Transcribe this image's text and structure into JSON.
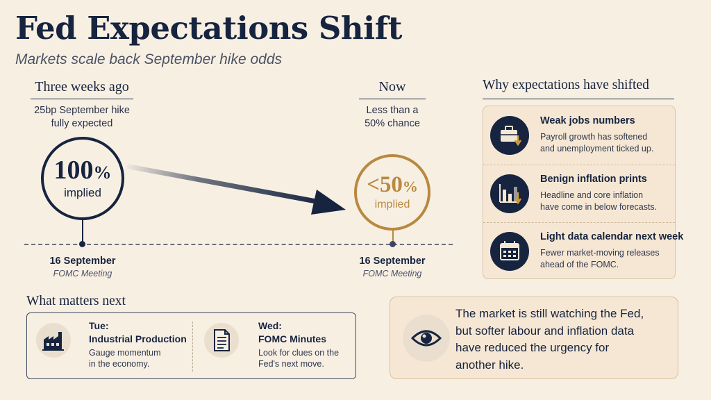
{
  "header": {
    "title": "Fed Expectations Shift",
    "subtitle": "Markets scale back September hike odds"
  },
  "colors": {
    "navy": "#16243f",
    "gold": "#b8893f",
    "background": "#f8efe3",
    "panel": "#f6e7d4"
  },
  "timeline": {
    "then": {
      "heading": "Three weeks ago",
      "desc_line1": "25bp September hike",
      "desc_line2": "fully expected",
      "value": "100",
      "unit": "%",
      "label": "implied",
      "probability_pct": 100
    },
    "now": {
      "heading": "Now",
      "desc_line1": "Less than a",
      "desc_line2": "50% chance",
      "value": "<50",
      "unit": "%",
      "label": "implied",
      "probability_pct": 50
    },
    "meeting_then": {
      "date": "16 September",
      "name": "FOMC Meeting"
    },
    "meeting_now": {
      "date": "16 September",
      "name": "FOMC Meeting"
    }
  },
  "why": {
    "heading": "Why expectations have shifted",
    "items": [
      {
        "icon": "briefcase-down-icon",
        "title": "Weak jobs numbers",
        "line1": "Payroll growth has softened",
        "line2": "and unemployment ticked up."
      },
      {
        "icon": "chart-down-icon",
        "title": "Benign inflation prints",
        "line1": "Headline and core inflation",
        "line2": "have come in below forecasts."
      },
      {
        "icon": "calendar-icon",
        "title": "Light data calendar next week",
        "line1": "Fewer market-moving releases",
        "line2": "ahead of the FOMC."
      }
    ]
  },
  "next": {
    "heading": "What matters next",
    "items": [
      {
        "icon": "factory-icon",
        "day": "Tue:",
        "title": "Industrial Production",
        "line1": "Gauge momentum",
        "line2": "in the economy."
      },
      {
        "icon": "document-icon",
        "day": "Wed:",
        "title": "FOMC Minutes",
        "line1": "Look for clues on the",
        "line2": "Fed's next move."
      }
    ]
  },
  "quote": {
    "icon": "eye-icon",
    "line1": "The market is still watching the Fed,",
    "line2": "but softer labour and inflation data",
    "line3": "have reduced the urgency for",
    "line4": "another hike."
  }
}
